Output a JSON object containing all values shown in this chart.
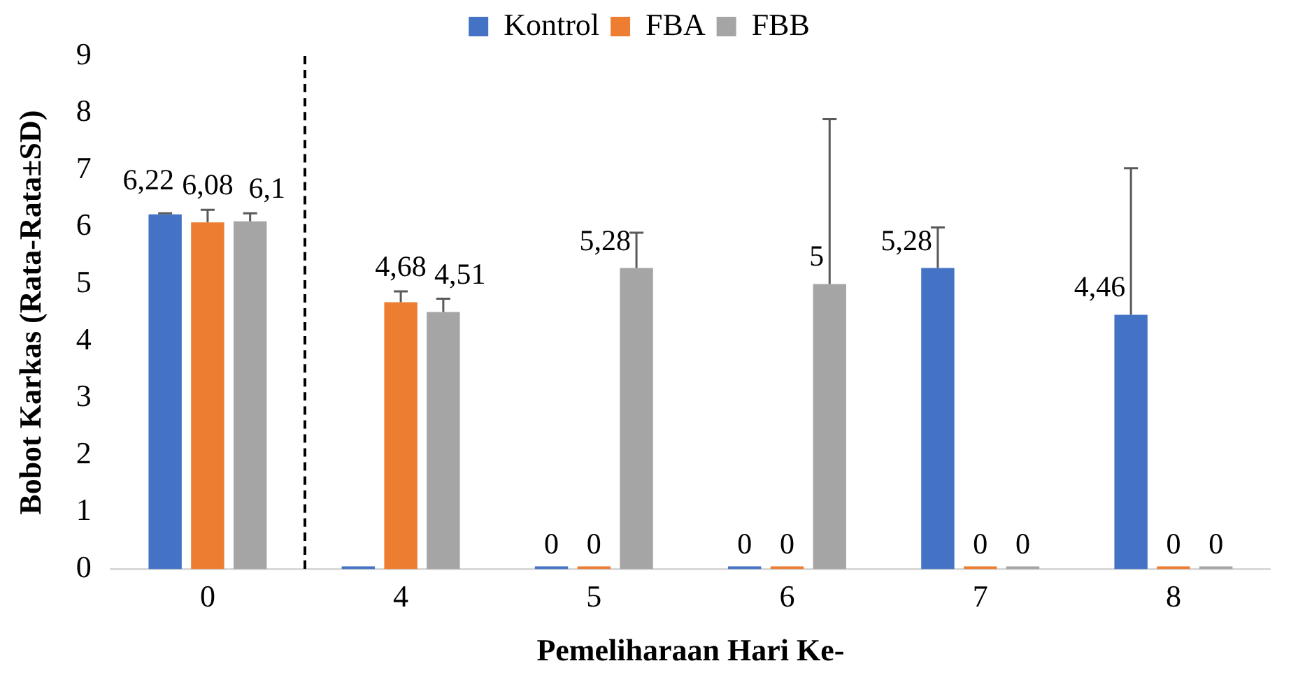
{
  "chart_data": {
    "type": "bar",
    "xlabel": "Pemeliharaan Hari Ke-",
    "ylabel": "Bobot Karkas (Rata-Rata±SD)",
    "categories": [
      "0",
      "4",
      "5",
      "6",
      "7",
      "8"
    ],
    "series": [
      {
        "name": "Kontrol",
        "color": "#4472c4",
        "values": [
          6.22,
          0,
          0,
          0,
          5.28,
          4.46
        ],
        "value_labels": [
          "6,22",
          null,
          "0",
          "0",
          "5,28",
          "4,46"
        ],
        "errors": [
          [
            6.22,
            6.24
          ],
          null,
          null,
          null,
          [
            5.28,
            5.99
          ],
          [
            4.46,
            7.03
          ]
        ]
      },
      {
        "name": "FBA",
        "color": "#ed7d31",
        "values": [
          6.08,
          4.68,
          0,
          0,
          0,
          0
        ],
        "value_labels": [
          "6,08",
          "4,68",
          "0",
          "0",
          "0",
          "0"
        ],
        "errors": [
          [
            6.08,
            6.3
          ],
          [
            4.68,
            4.87
          ],
          null,
          null,
          null,
          null
        ]
      },
      {
        "name": "FBB",
        "color": "#a5a5a5",
        "values": [
          6.1,
          4.51,
          5.28,
          5,
          0,
          0
        ],
        "value_labels": [
          "6,1",
          "4,51",
          "5,28",
          "5",
          "0",
          "0"
        ],
        "errors": [
          [
            6.1,
            6.24
          ],
          [
            4.51,
            4.74
          ],
          [
            5.28,
            5.9
          ],
          [
            5,
            7.89
          ],
          null,
          null
        ]
      }
    ],
    "ylim": [
      0,
      9
    ],
    "yticks": [
      0,
      1,
      2,
      3,
      4,
      5,
      6,
      7,
      8,
      9
    ],
    "grid": false,
    "legend": "top"
  }
}
